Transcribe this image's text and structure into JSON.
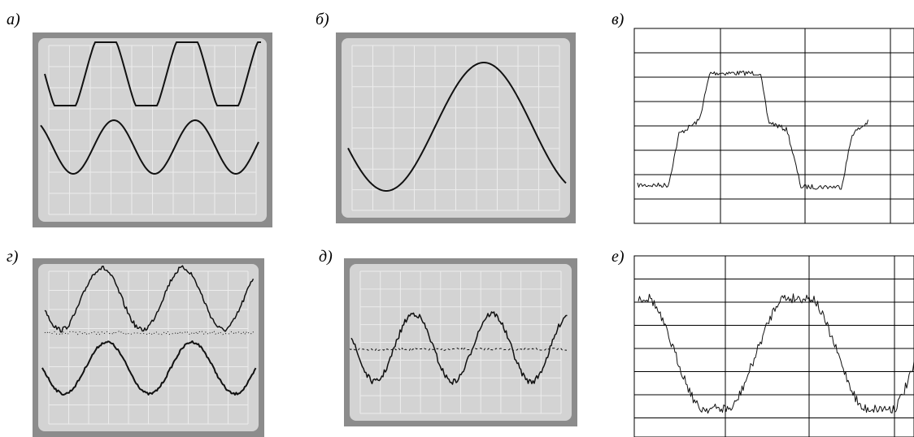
{
  "panels": [
    {
      "label": "а)"
    },
    {
      "label": "б)"
    },
    {
      "label": "в)"
    },
    {
      "label": "г)"
    },
    {
      "label": "д)"
    },
    {
      "label": "е)"
    }
  ]
}
